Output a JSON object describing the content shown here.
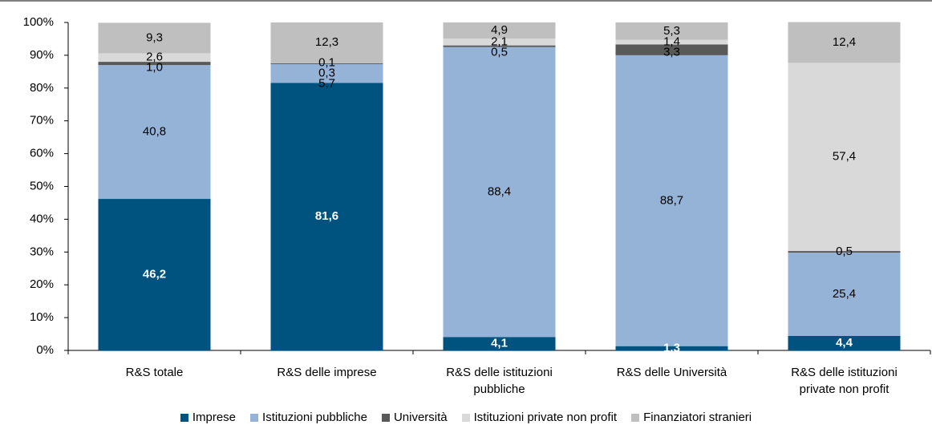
{
  "chart_data": {
    "type": "stacked_bar",
    "categories": [
      "R&S totale",
      "R&S delle imprese",
      "R&S delle istituzioni pubbliche",
      "R&S delle Università",
      "R&S delle istituzioni private non profit"
    ],
    "series": [
      {
        "name": "Imprese",
        "color": "#00527f",
        "values": [
          46.2,
          81.6,
          4.1,
          1.3,
          4.4
        ],
        "value_labels": [
          "46,2",
          "81,6",
          "4,1",
          "1,3",
          "4,4"
        ]
      },
      {
        "name": "Istituzioni pubbliche",
        "color": "#95b3d7",
        "values": [
          40.8,
          5.7,
          88.4,
          88.7,
          25.4
        ],
        "value_labels": [
          "40,8",
          "5,7",
          "88,4",
          "88,7",
          "25,4"
        ]
      },
      {
        "name": "Università",
        "color": "#595959",
        "values": [
          1.0,
          0.3,
          0.5,
          3.3,
          0.5
        ],
        "value_labels": [
          "1,0",
          "0,3",
          "0,5",
          "3,3",
          "0,5"
        ]
      },
      {
        "name": "Istituzioni private non profit",
        "color": "#d9d9d9",
        "values": [
          2.6,
          0.1,
          2.1,
          1.4,
          57.4
        ],
        "value_labels": [
          "2,6",
          "0,1",
          "2,1",
          "1,4",
          "57,4"
        ]
      },
      {
        "name": "Finanziatori stranieri",
        "color": "#bfbfbf",
        "values": [
          9.3,
          12.3,
          4.9,
          5.3,
          12.4
        ],
        "value_labels": [
          "9,3",
          "12,3",
          "4,9",
          "5,3",
          "12,4"
        ]
      }
    ],
    "ylim": [
      0,
      100
    ],
    "yticks": [
      {
        "value": 0,
        "label": "0%"
      },
      {
        "value": 10,
        "label": "10%"
      },
      {
        "value": 20,
        "label": "20%"
      },
      {
        "value": 30,
        "label": "30%"
      },
      {
        "value": 40,
        "label": "40%"
      },
      {
        "value": 50,
        "label": "50%"
      },
      {
        "value": 60,
        "label": "60%"
      },
      {
        "value": 70,
        "label": "70%"
      },
      {
        "value": 80,
        "label": "80%"
      },
      {
        "value": 90,
        "label": "90%"
      },
      {
        "value": 100,
        "label": "100%"
      }
    ],
    "grid": false
  }
}
